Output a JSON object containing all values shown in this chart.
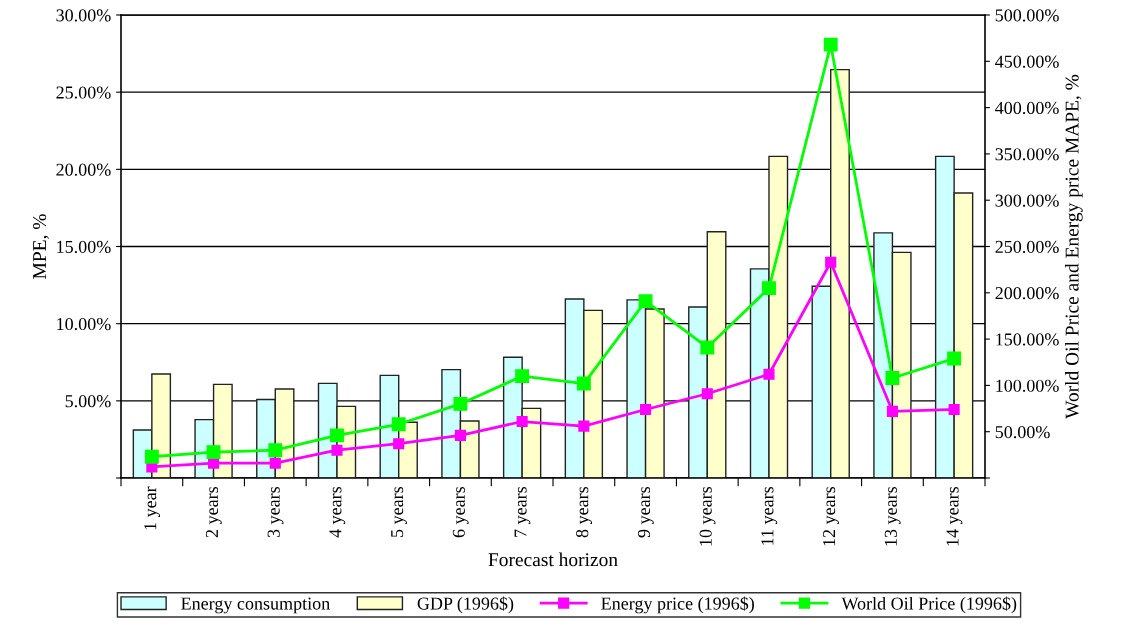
{
  "chart_data": {
    "type": "bar",
    "xlabel": "Forecast horizon",
    "ylabel": "MPE, %",
    "y2label": "World Oil Price and Energy price MAPE, %",
    "categories": [
      "1 year",
      "2 years",
      "3 years",
      "4 years",
      "5 years",
      "6 years",
      "7 years",
      "8 years",
      "9 years",
      "10 years",
      "11 years",
      "12 years",
      "13 years",
      "14 years"
    ],
    "series": [
      {
        "name": "Energy consumption",
        "color": "#ccffff",
        "values": [
          3.11,
          3.78,
          5.09,
          6.13,
          6.65,
          7.02,
          7.82,
          11.6,
          11.54,
          11.08,
          13.55,
          12.42,
          15.88,
          20.84
        ]
      },
      {
        "name": "GDP (1996$)",
        "color": "#ffffcc",
        "values": [
          6.74,
          6.07,
          5.77,
          4.64,
          3.61,
          3.69,
          4.51,
          10.86,
          10.95,
          15.96,
          20.84,
          26.46,
          14.62,
          18.47
        ]
      },
      {
        "name": "Energy price (1996$)",
        "type": "line",
        "axis": "y2",
        "color": "#ff00ff",
        "values": [
          12,
          16,
          16,
          30,
          37,
          46,
          61,
          56,
          74,
          91,
          112,
          233,
          72,
          74
        ]
      },
      {
        "name": "World Oil Price (1996$)",
        "type": "line",
        "axis": "y2",
        "color": "#00ff00",
        "values": [
          23,
          28,
          30,
          46,
          58,
          80,
          110,
          102,
          191,
          141,
          205,
          468,
          108,
          129
        ]
      }
    ],
    "ylim": [
      0,
      30
    ],
    "yticks": [
      {
        "value": 0,
        "label": null
      },
      {
        "value": 5,
        "label": "5.00%"
      },
      {
        "value": 10,
        "label": "10.00%"
      },
      {
        "value": 15,
        "label": "15.00%"
      },
      {
        "value": 20,
        "label": "20.00%"
      },
      {
        "value": 25,
        "label": "25.00%"
      },
      {
        "value": 30,
        "label": "30.00%"
      }
    ],
    "y2lim": [
      0,
      500
    ],
    "y2ticks": [
      {
        "value": 0,
        "label": null
      },
      {
        "value": 50,
        "label": "50.00%"
      },
      {
        "value": 100,
        "label": "100.00%"
      },
      {
        "value": 150,
        "label": "150.00%"
      },
      {
        "value": 200,
        "label": "200.00%"
      },
      {
        "value": 250,
        "label": "250.00%"
      },
      {
        "value": 300,
        "label": "300.00%"
      },
      {
        "value": 350,
        "label": "350.00%"
      },
      {
        "value": 400,
        "label": "400.00%"
      },
      {
        "value": 450,
        "label": "450.00%"
      },
      {
        "value": 500,
        "label": "500.00%"
      }
    ],
    "grid": "y",
    "legend": "bottom",
    "marker": "square",
    "line_style": "solid"
  }
}
